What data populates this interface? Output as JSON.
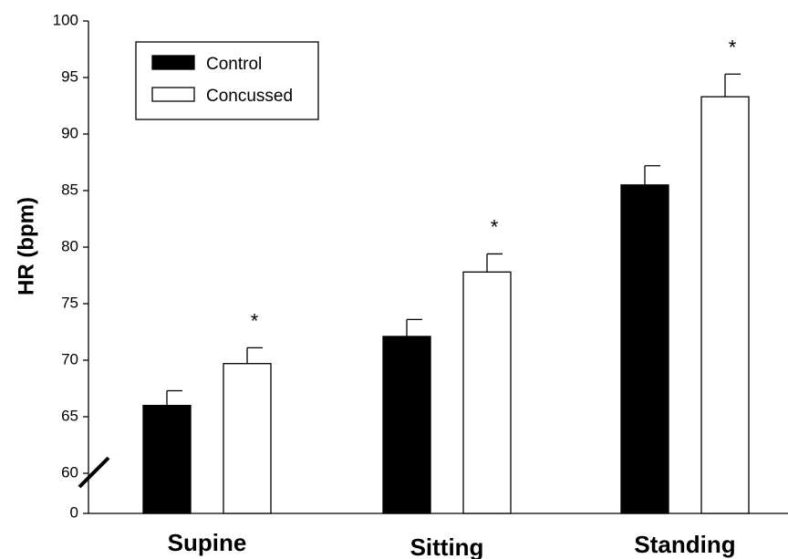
{
  "chart_data": {
    "type": "bar",
    "title": "",
    "xlabel": "",
    "ylabel": "HR (bpm)",
    "categories": [
      "Supine",
      "Sitting",
      "Standing"
    ],
    "series": [
      {
        "name": "Control",
        "values": [
          66.0,
          72.1,
          85.5
        ],
        "errors": [
          1.3,
          1.5,
          1.7
        ],
        "color": "#000000"
      },
      {
        "name": "Concussed",
        "values": [
          69.7,
          77.8,
          93.3
        ],
        "errors": [
          1.4,
          1.6,
          2.0
        ],
        "color": "#ffffff"
      }
    ],
    "significance_marker": "*",
    "significant": [
      true,
      true,
      true
    ],
    "ylim": [
      60,
      100
    ],
    "yticks": [
      "0",
      "60",
      "65",
      "70",
      "75",
      "80",
      "85",
      "90",
      "95",
      "100"
    ],
    "y_axis_break": true,
    "grid": false,
    "legend_position": "top-left"
  }
}
